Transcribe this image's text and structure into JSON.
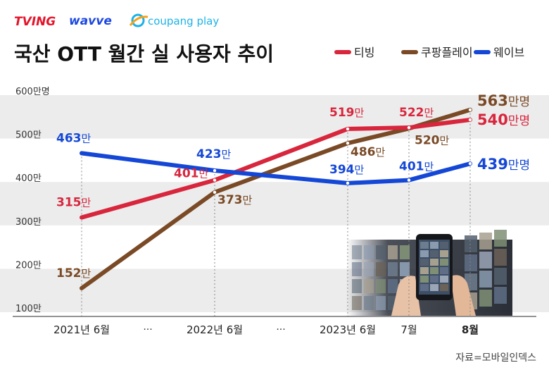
{
  "logos": {
    "tving": "TVING",
    "wavve": "wavve",
    "coupang": "coupang play"
  },
  "source": "자료=모바일인덱스",
  "colors": {
    "tving": "#d8263d",
    "coupang": "#7a4a26",
    "wavve": "#1447d6",
    "tving_logo": "#e4152b",
    "wavve_logo": "#1d48e0",
    "coupang_logo": "#1bb2e8",
    "band": "#ececec",
    "axis": "#555555"
  },
  "chart_data": {
    "type": "line",
    "title": "국산 OTT 월간 실 사용자 추이",
    "unit": "만명",
    "ylim": [
      100,
      600
    ],
    "yticks": [
      {
        "value": 600,
        "label": "600만명"
      },
      {
        "value": 500,
        "label": "500만"
      },
      {
        "value": 400,
        "label": "400만"
      },
      {
        "value": 300,
        "label": "300만"
      },
      {
        "value": 200,
        "label": "200만"
      },
      {
        "value": 100,
        "label": "100만"
      }
    ],
    "categories": [
      "2021년 6월",
      "2022년 6월",
      "2023년 6월",
      "7월",
      "8월"
    ],
    "ellipsis": "···",
    "legend_position": "top-right",
    "series": [
      {
        "name": "티빙",
        "key": "tving",
        "values": [
          315,
          401,
          519,
          522,
          540
        ],
        "labels": [
          "315만",
          "401만",
          "519만",
          "522만",
          "540만명"
        ]
      },
      {
        "name": "쿠팡플레이",
        "key": "coupang",
        "values": [
          152,
          373,
          486,
          520,
          563
        ],
        "labels": [
          "152만",
          "373만",
          "486만",
          "520만",
          "563만명"
        ]
      },
      {
        "name": "웨이브",
        "key": "wavve",
        "values": [
          463,
          423,
          394,
          401,
          439
        ],
        "labels": [
          "463만",
          "423만",
          "394만",
          "401만",
          "439만명"
        ]
      }
    ]
  }
}
